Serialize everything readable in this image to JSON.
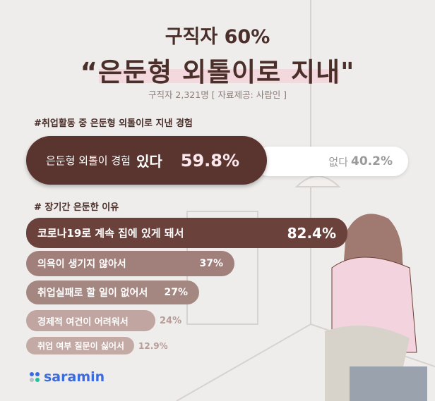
{
  "title_line1": "구직자 60%",
  "title_line2": "“은둔형 외톨이로 지내\"",
  "subtitle": "구직자 2,321명 [ 자료제공: 사람인 ]",
  "logo": "saramin",
  "chart_data": [
    {
      "type": "bar",
      "title": "#취업활동 중 은둔형 외톨이로 지낸 경험",
      "categories": [
        "은둔형 외톨이 경험 있다",
        "없다"
      ],
      "label_prefix": "은둔형 외톨이 경험",
      "label_bold": "있다",
      "values": [
        59.8,
        40.2
      ],
      "value_labels": [
        "59.8%",
        "40.2%"
      ],
      "colors": [
        "#5a3530",
        "#ffffff"
      ]
    },
    {
      "type": "bar",
      "title": "# 장기간 은둔한 이유",
      "categories": [
        "코로나19로 계속 집에 있게 돼서",
        "의욕이 생기지 않아서",
        "취업실패로 할 일이 없어서",
        "경제적 여건이 어려워서",
        "취업 여부 질문이 싫어서"
      ],
      "values": [
        82.4,
        37,
        27,
        24,
        12.9
      ],
      "value_labels": [
        "82.4%",
        "37%",
        "27%",
        "24%",
        "12.9%"
      ],
      "colors": [
        "#6b413b",
        "#a17f7a",
        "#a58782",
        "#c0a5a0",
        "#c4aaa5"
      ]
    }
  ]
}
